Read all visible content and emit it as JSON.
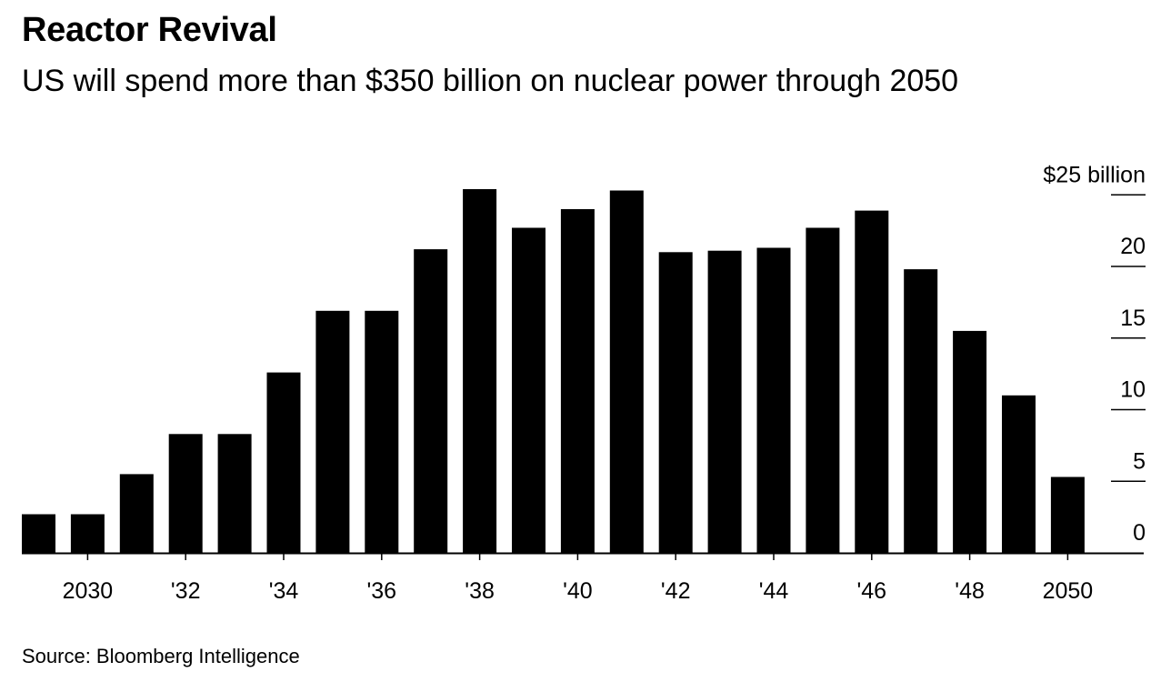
{
  "header": {
    "title": "Reactor Revival",
    "subtitle": "US will spend more than $350 billion on nuclear power through 2050"
  },
  "footer": {
    "source": "Source: Bloomberg Intelligence"
  },
  "colors": {
    "bar": "#000000",
    "background": "#ffffff",
    "axis": "#000000"
  },
  "chart_data": {
    "type": "bar",
    "title": "Reactor Revival",
    "subtitle": "US will spend more than $350 billion on nuclear power through 2050",
    "xlabel": "",
    "ylabel": "",
    "y_unit_label": "$25 billion",
    "y_ticks": [
      0,
      5,
      10,
      15,
      20,
      25
    ],
    "y_tick_labels": [
      "0",
      "5",
      "10",
      "15",
      "20",
      "$25 billion"
    ],
    "ylim": [
      0,
      25
    ],
    "y_axis_side": "right",
    "grid": false,
    "legend": "none",
    "categories": [
      2029,
      2030,
      2031,
      2032,
      2033,
      2034,
      2035,
      2036,
      2037,
      2038,
      2039,
      2040,
      2041,
      2042,
      2043,
      2044,
      2045,
      2046,
      2047,
      2048,
      2049,
      2050
    ],
    "x_tick_labels": [
      {
        "year": 2030,
        "label": "2030"
      },
      {
        "year": 2032,
        "label": "'32"
      },
      {
        "year": 2034,
        "label": "'34"
      },
      {
        "year": 2036,
        "label": "'36"
      },
      {
        "year": 2038,
        "label": "'38"
      },
      {
        "year": 2040,
        "label": "'40"
      },
      {
        "year": 2042,
        "label": "'42"
      },
      {
        "year": 2044,
        "label": "'44"
      },
      {
        "year": 2046,
        "label": "'46"
      },
      {
        "year": 2048,
        "label": "'48"
      },
      {
        "year": 2050,
        "label": "2050"
      }
    ],
    "values": [
      2.7,
      2.7,
      5.5,
      8.3,
      8.3,
      12.6,
      16.9,
      16.9,
      21.2,
      25.4,
      22.7,
      24.0,
      25.3,
      21.0,
      21.1,
      21.3,
      22.7,
      23.9,
      19.8,
      15.5,
      11.0,
      5.3
    ],
    "source": "Source: Bloomberg Intelligence"
  }
}
